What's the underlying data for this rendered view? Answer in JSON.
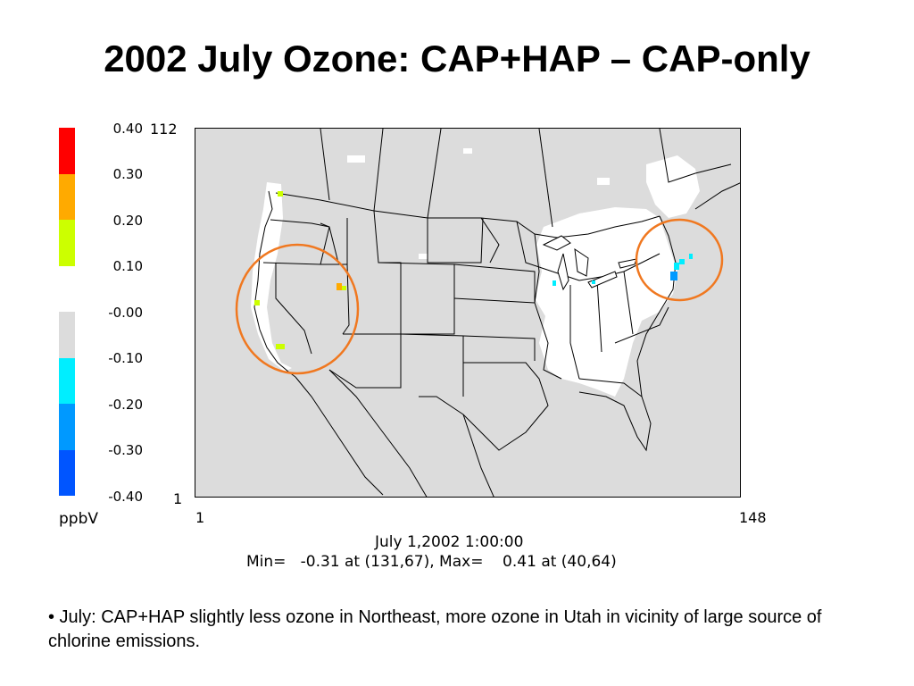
{
  "title": "2002 July Ozone: CAP+HAP – CAP-only",
  "legend": {
    "unit": "ppbV",
    "labels": [
      "0.40",
      "0.30",
      "0.20",
      "0.10",
      "-0.00",
      "-0.10",
      "-0.20",
      "-0.30",
      "-0.40"
    ],
    "colors": [
      "#ff0000",
      "#ffaa00",
      "#ccff00",
      "#ffffff",
      "#dcdcdc",
      "#00eeff",
      "#0099ff",
      "#0055ff",
      "#0033dd"
    ]
  },
  "grid_axes": {
    "y_top": "112",
    "y_bottom": "1",
    "x_left": "1",
    "x_right": "148"
  },
  "plot_caption": {
    "date_line": "July 1,2002 1:00:00",
    "minmax_line": "Min=   -0.31 at (131,67), Max=    0.41 at (40,64)"
  },
  "highlight_circles": {
    "color": "#f07820",
    "regions": [
      "California-Nevada-Utah",
      "Northeast"
    ]
  },
  "bullet": "•  July:  CAP+HAP  slightly less ozone in Northeast, more ozone in Utah in vicinity of large source of chlorine emissions."
}
